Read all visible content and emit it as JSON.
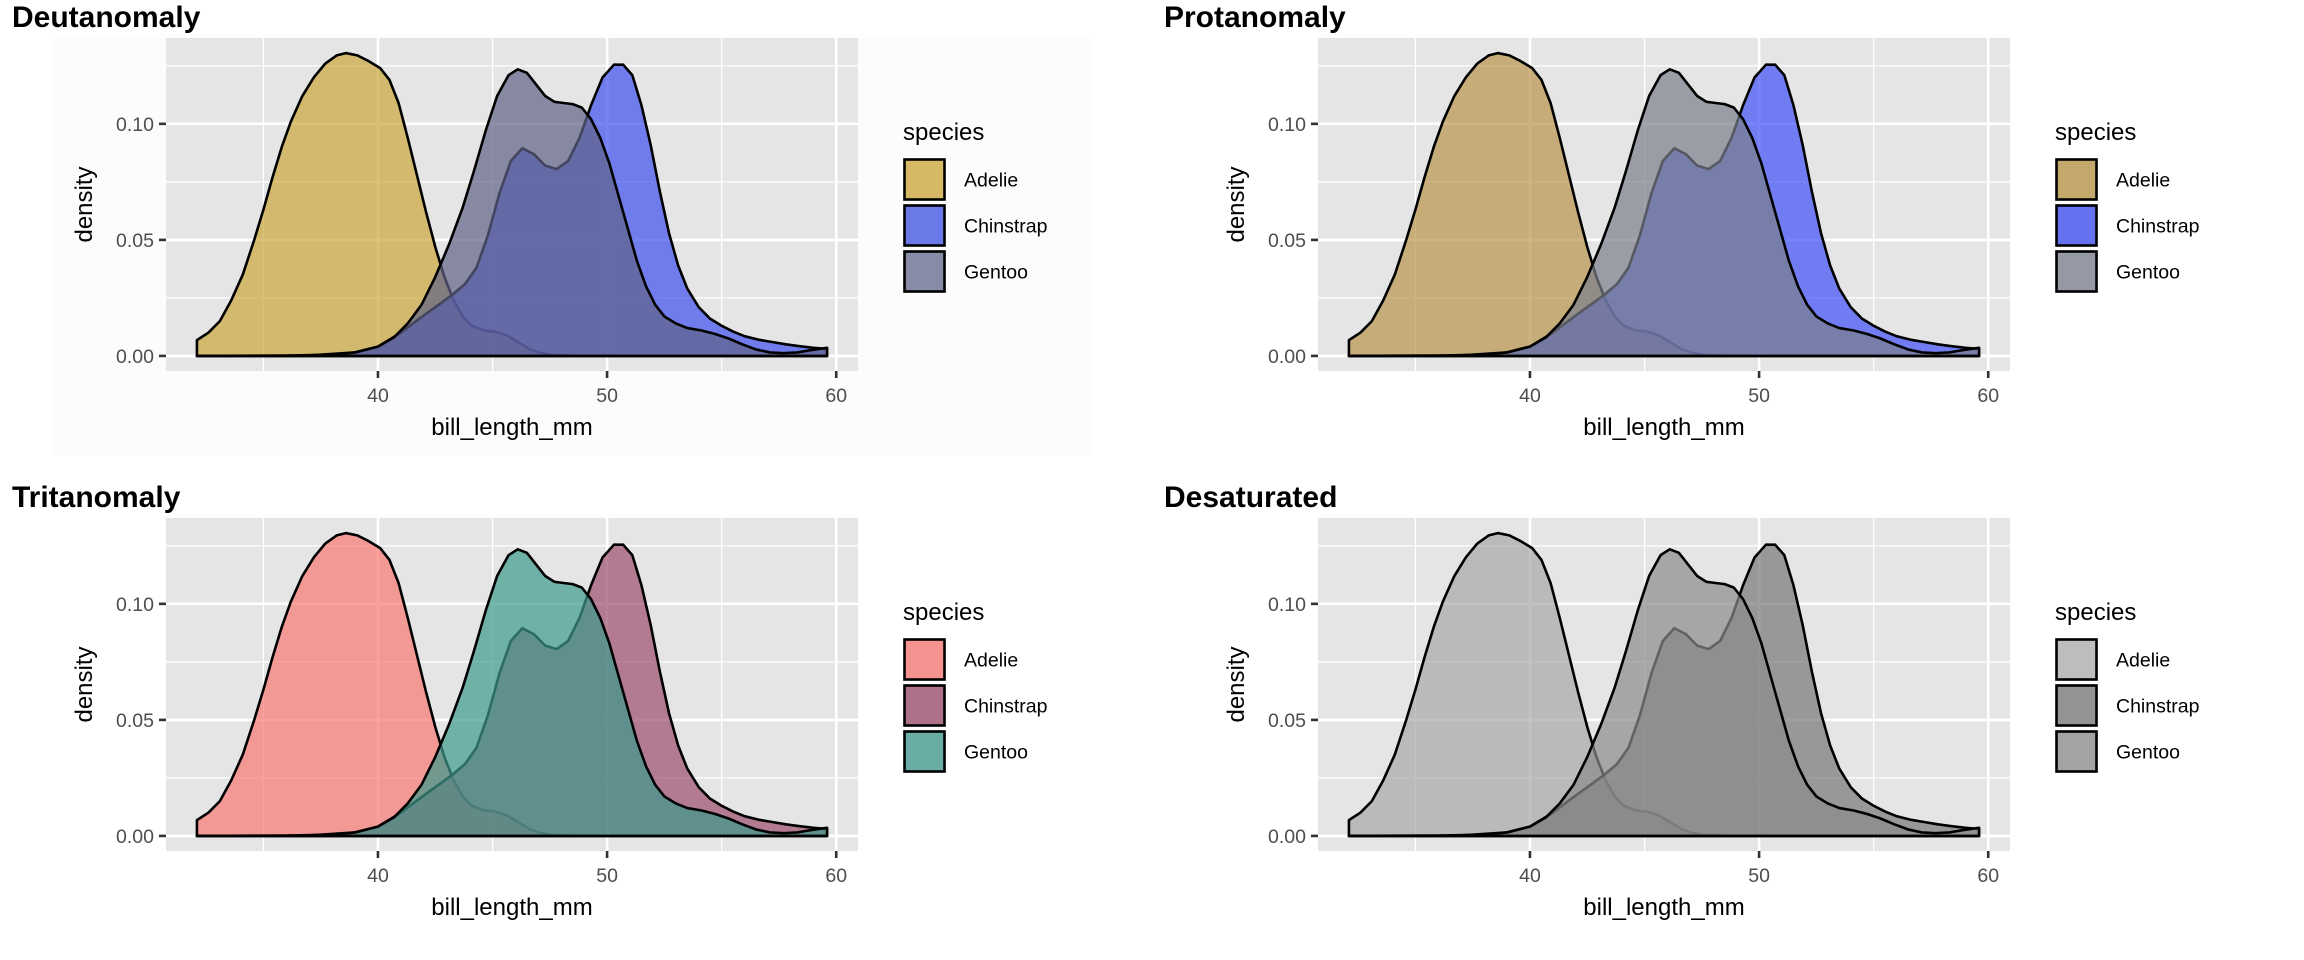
{
  "chart_data": {
    "type": "area",
    "subtype": "density",
    "layout": "2x2 grid",
    "shared": {
      "xlabel": "bill_length_mm",
      "ylabel": "density",
      "xlim": [
        30.75,
        60.95
      ],
      "ylim": [
        -0.0065,
        0.137
      ],
      "x_ticks": [
        40,
        50,
        60
      ],
      "x_tick_labels": [
        "40",
        "50",
        "60"
      ],
      "x_minor_grid": [
        35,
        45,
        55
      ],
      "y_ticks": [
        0.0,
        0.05,
        0.1
      ],
      "y_tick_labels": [
        "0.00",
        "0.05",
        "0.10"
      ],
      "y_minor_grid": [
        0.025,
        0.075,
        0.125
      ],
      "grid": true,
      "panel_background": "#e5e5e5",
      "fill_alpha": 0.7,
      "legend_title": "species",
      "legend_position": "right",
      "series": [
        {
          "name": "Adelie",
          "points": [
            [
              32.1,
              0.0068
            ],
            [
              32.6,
              0.01
            ],
            [
              33.1,
              0.015
            ],
            [
              33.6,
              0.024
            ],
            [
              34.1,
              0.035
            ],
            [
              34.6,
              0.05
            ],
            [
              35.0,
              0.063
            ],
            [
              35.4,
              0.077
            ],
            [
              35.8,
              0.09
            ],
            [
              36.2,
              0.101
            ],
            [
              36.7,
              0.112
            ],
            [
              37.2,
              0.12
            ],
            [
              37.7,
              0.126
            ],
            [
              38.2,
              0.1295
            ],
            [
              38.6,
              0.1305
            ],
            [
              39.1,
              0.1295
            ],
            [
              39.6,
              0.127
            ],
            [
              40.1,
              0.124
            ],
            [
              40.5,
              0.119
            ],
            [
              40.9,
              0.109
            ],
            [
              41.3,
              0.094
            ],
            [
              41.7,
              0.078
            ],
            [
              42.1,
              0.062
            ],
            [
              42.5,
              0.047
            ],
            [
              42.9,
              0.034
            ],
            [
              43.3,
              0.024
            ],
            [
              43.7,
              0.017
            ],
            [
              44.1,
              0.013
            ],
            [
              44.6,
              0.011
            ],
            [
              45.1,
              0.0105
            ],
            [
              45.6,
              0.009
            ],
            [
              46.1,
              0.006
            ],
            [
              46.6,
              0.003
            ],
            [
              47.1,
              0.0012
            ],
            [
              47.7,
              0.0004
            ],
            [
              48.5,
              0.0001
            ],
            [
              50.0,
              0.0
            ],
            [
              59.6,
              0.0
            ]
          ]
        },
        {
          "name": "Chinstrap",
          "points": [
            [
              32.1,
              0.0
            ],
            [
              37.0,
              0.0002
            ],
            [
              39.0,
              0.0015
            ],
            [
              40.0,
              0.004
            ],
            [
              41.0,
              0.01
            ],
            [
              41.8,
              0.016
            ],
            [
              42.5,
              0.021
            ],
            [
              43.2,
              0.026
            ],
            [
              43.8,
              0.031
            ],
            [
              44.3,
              0.038
            ],
            [
              44.8,
              0.052
            ],
            [
              45.3,
              0.07
            ],
            [
              45.8,
              0.084
            ],
            [
              46.3,
              0.0895
            ],
            [
              46.8,
              0.087
            ],
            [
              47.3,
              0.082
            ],
            [
              47.8,
              0.0805
            ],
            [
              48.3,
              0.084
            ],
            [
              48.8,
              0.094
            ],
            [
              49.3,
              0.108
            ],
            [
              49.8,
              0.12
            ],
            [
              50.3,
              0.1255
            ],
            [
              50.7,
              0.1255
            ],
            [
              51.1,
              0.121
            ],
            [
              51.5,
              0.108
            ],
            [
              51.9,
              0.091
            ],
            [
              52.3,
              0.071
            ],
            [
              52.7,
              0.053
            ],
            [
              53.1,
              0.039
            ],
            [
              53.5,
              0.029
            ],
            [
              54.0,
              0.021
            ],
            [
              54.5,
              0.016
            ],
            [
              55.0,
              0.013
            ],
            [
              55.5,
              0.0105
            ],
            [
              56.0,
              0.0085
            ],
            [
              56.6,
              0.007
            ],
            [
              57.2,
              0.006
            ],
            [
              57.8,
              0.005
            ],
            [
              58.4,
              0.0042
            ],
            [
              59.0,
              0.0035
            ],
            [
              59.6,
              0.003
            ]
          ]
        },
        {
          "name": "Gentoo",
          "points": [
            [
              32.1,
              0.0
            ],
            [
              36.0,
              0.0001
            ],
            [
              38.0,
              0.0006
            ],
            [
              39.0,
              0.0015
            ],
            [
              40.0,
              0.004
            ],
            [
              40.7,
              0.008
            ],
            [
              41.3,
              0.014
            ],
            [
              41.9,
              0.022
            ],
            [
              42.5,
              0.034
            ],
            [
              43.1,
              0.048
            ],
            [
              43.7,
              0.064
            ],
            [
              44.2,
              0.08
            ],
            [
              44.7,
              0.097
            ],
            [
              45.2,
              0.112
            ],
            [
              45.7,
              0.121
            ],
            [
              46.1,
              0.1235
            ],
            [
              46.5,
              0.122
            ],
            [
              46.9,
              0.117
            ],
            [
              47.3,
              0.112
            ],
            [
              47.7,
              0.1095
            ],
            [
              48.1,
              0.109
            ],
            [
              48.5,
              0.1085
            ],
            [
              48.9,
              0.107
            ],
            [
              49.3,
              0.102
            ],
            [
              49.7,
              0.094
            ],
            [
              50.1,
              0.083
            ],
            [
              50.5,
              0.069
            ],
            [
              50.9,
              0.055
            ],
            [
              51.3,
              0.041
            ],
            [
              51.7,
              0.03
            ],
            [
              52.1,
              0.022
            ],
            [
              52.5,
              0.017
            ],
            [
              53.0,
              0.014
            ],
            [
              53.5,
              0.012
            ],
            [
              54.1,
              0.011
            ],
            [
              54.7,
              0.0095
            ],
            [
              55.3,
              0.0075
            ],
            [
              55.9,
              0.005
            ],
            [
              56.5,
              0.0028
            ],
            [
              57.1,
              0.0015
            ],
            [
              57.7,
              0.0012
            ],
            [
              58.3,
              0.0015
            ],
            [
              58.9,
              0.0025
            ],
            [
              59.6,
              0.0035
            ]
          ]
        }
      ]
    },
    "panels": [
      {
        "title": "Deutanomaly",
        "colors": {
          "Adelie": "#cca63a",
          "Chinstrap": "#3f50ee",
          "Gentoo": "#5f6388"
        },
        "legend_colors": {
          "Adelie": "#d6b865",
          "Chinstrap": "#6a78e8",
          "Gentoo": "#878ba5"
        }
      },
      {
        "title": "Protanomaly",
        "colors": {
          "Adelie": "#b8944a",
          "Chinstrap": "#4250f8",
          "Gentoo": "#7a7f8c"
        },
        "legend_colors": {
          "Adelie": "#c4a76a",
          "Chinstrap": "#6472f0",
          "Gentoo": "#9599a3"
        }
      },
      {
        "title": "Tritanomaly",
        "colors": {
          "Adelie": "#f87874",
          "Chinstrap": "#9c4e6e",
          "Gentoo": "#3d9a8d"
        },
        "legend_colors": {
          "Adelie": "#f59390",
          "Chinstrap": "#ad7189",
          "Gentoo": "#69ada4"
        }
      },
      {
        "title": "Desaturated",
        "colors": {
          "Adelie": "#a8a8a8",
          "Chinstrap": "#787878",
          "Gentoo": "#8c8c8c"
        },
        "legend_colors": {
          "Adelie": "#bdbdbd",
          "Chinstrap": "#939393",
          "Gentoo": "#a3a3a3"
        }
      }
    ]
  }
}
